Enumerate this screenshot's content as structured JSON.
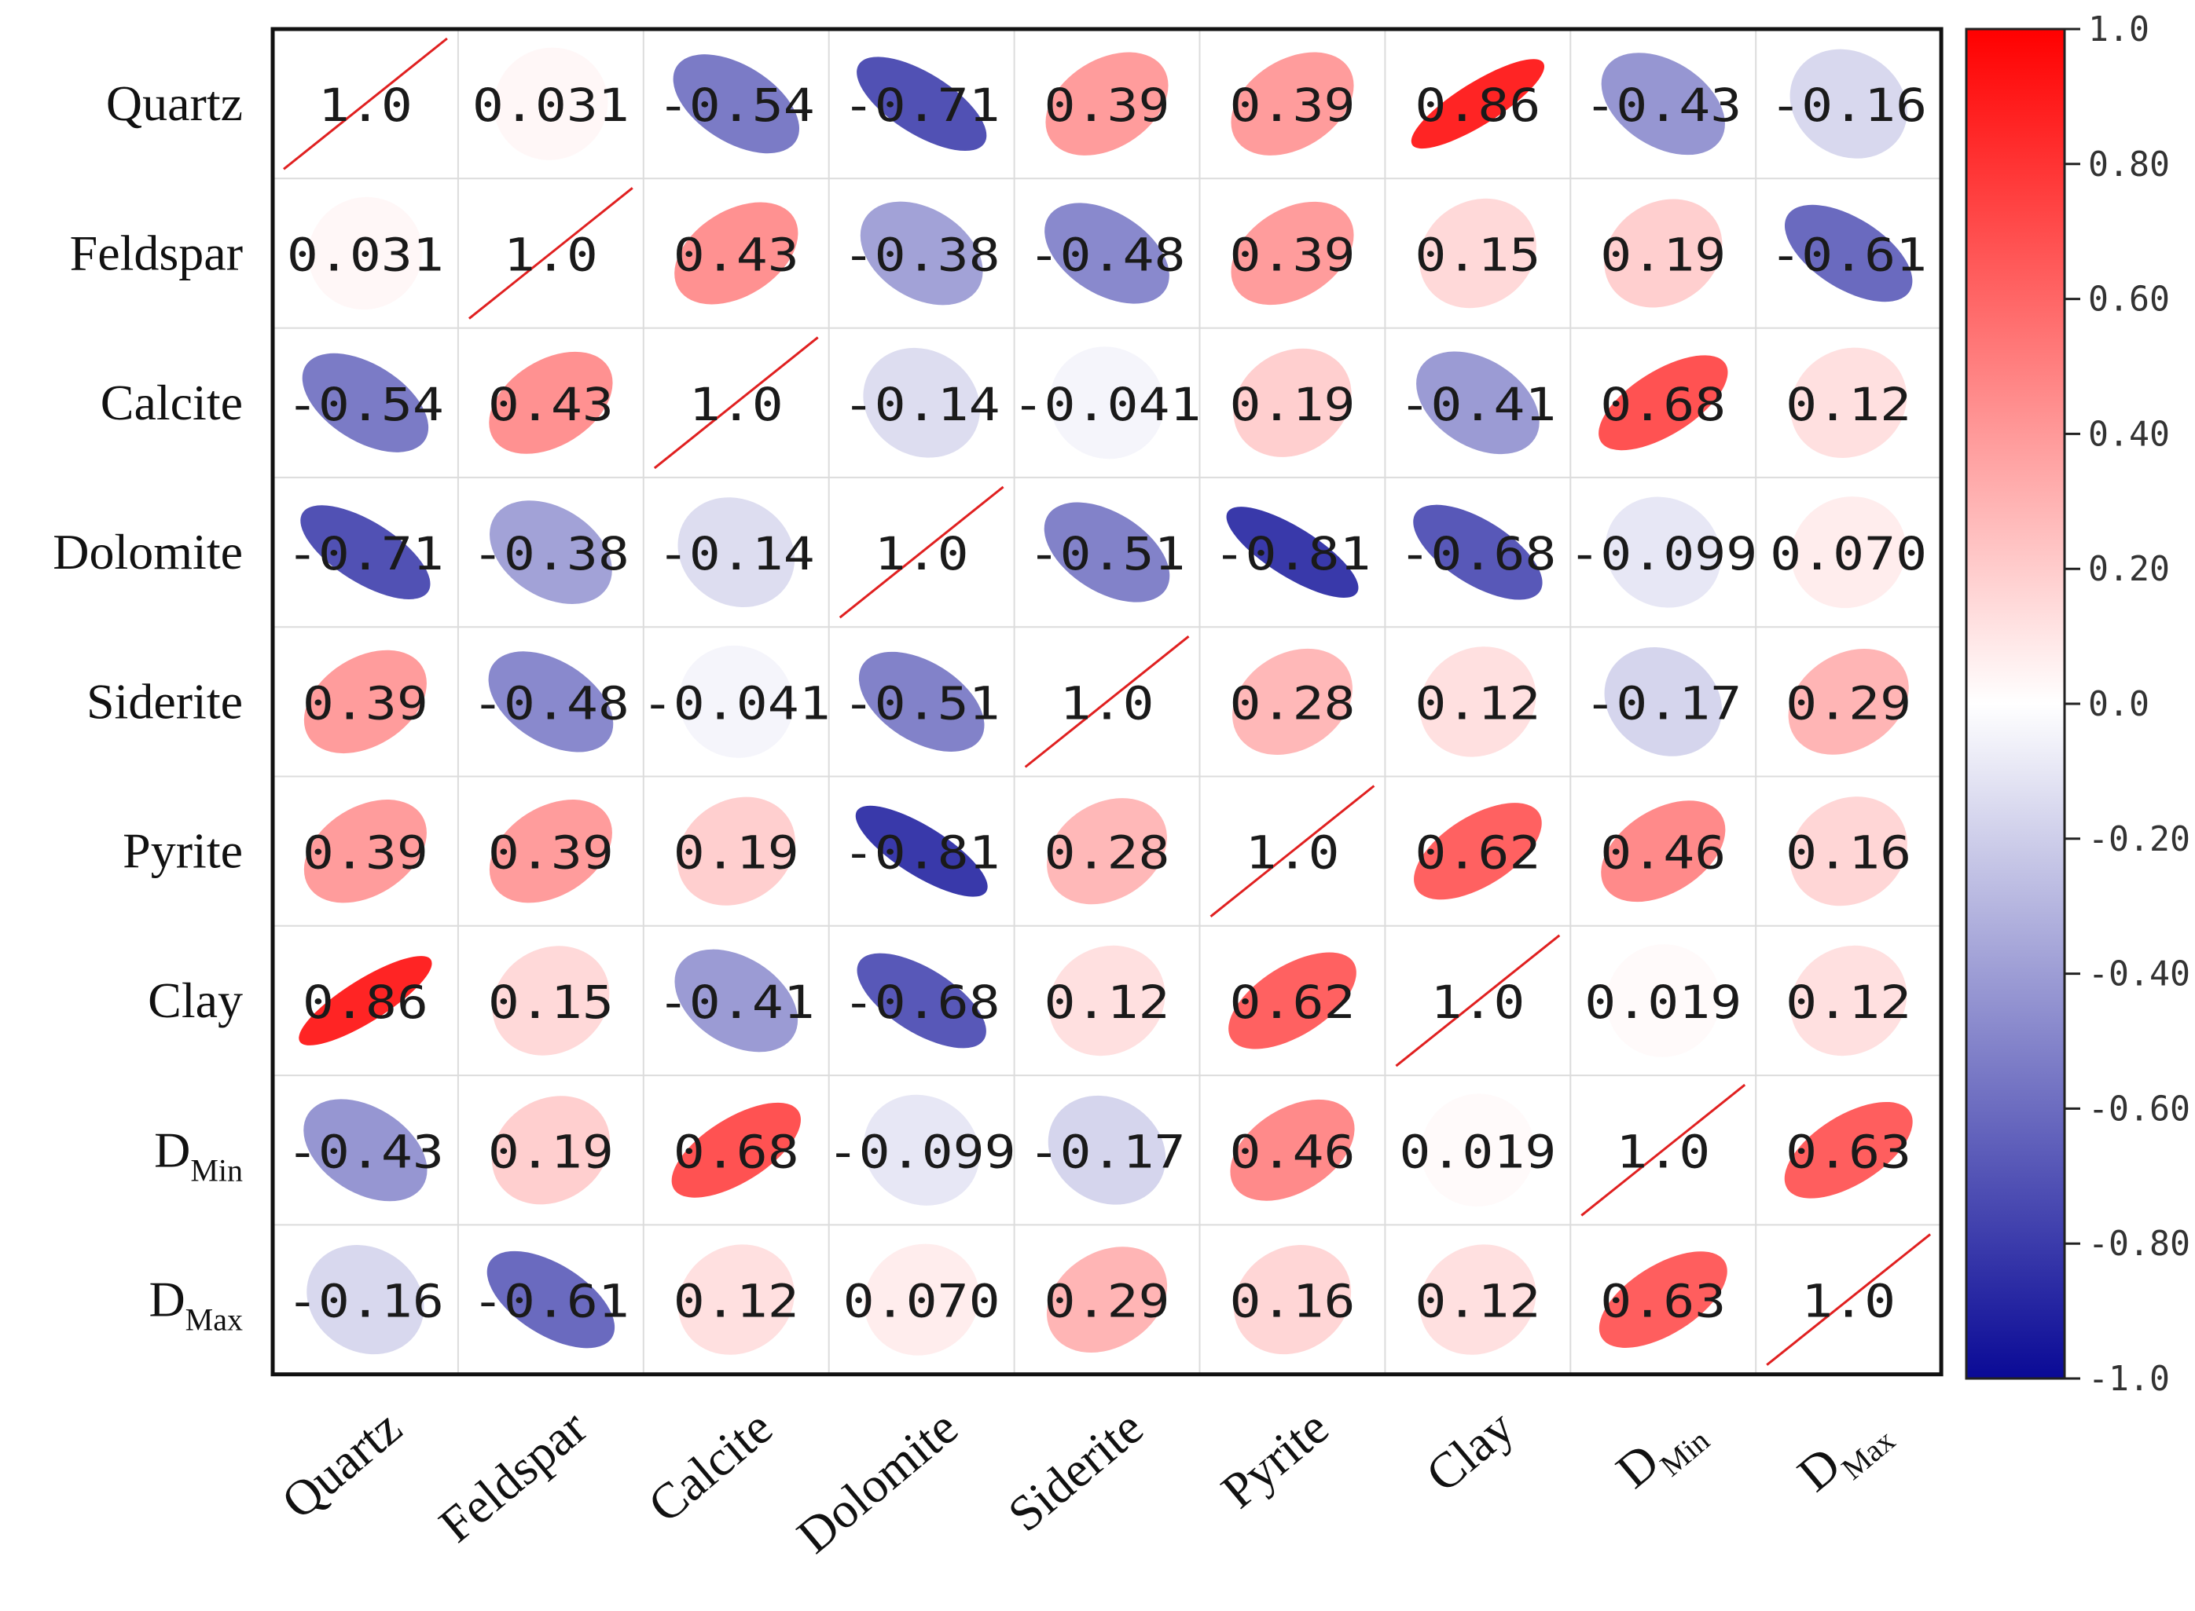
{
  "chart_data": {
    "type": "heatmap",
    "subtype": "correlation-ellipse-matrix",
    "variables": [
      {
        "name": "Quartz"
      },
      {
        "name": "Feldspar"
      },
      {
        "name": "Calcite"
      },
      {
        "name": "Dolomite"
      },
      {
        "name": "Siderite"
      },
      {
        "name": "Pyrite"
      },
      {
        "name": "Clay"
      },
      {
        "name": "D",
        "sub": "Min"
      },
      {
        "name": "D",
        "sub": "Max"
      }
    ],
    "matrix": [
      [
        1.0,
        0.031,
        -0.54,
        -0.71,
        0.39,
        0.39,
        0.86,
        -0.43,
        -0.16
      ],
      [
        0.031,
        1.0,
        0.43,
        -0.38,
        -0.48,
        0.39,
        0.15,
        0.19,
        -0.61
      ],
      [
        -0.54,
        0.43,
        1.0,
        -0.14,
        -0.041,
        0.19,
        -0.41,
        0.68,
        0.12
      ],
      [
        -0.71,
        -0.38,
        -0.14,
        1.0,
        -0.51,
        -0.81,
        -0.68,
        -0.099,
        0.07
      ],
      [
        0.39,
        -0.48,
        -0.041,
        -0.51,
        1.0,
        0.28,
        0.12,
        -0.17,
        0.29
      ],
      [
        0.39,
        0.39,
        0.19,
        -0.81,
        0.28,
        1.0,
        0.62,
        0.46,
        0.16
      ],
      [
        0.86,
        0.15,
        -0.41,
        -0.68,
        0.12,
        0.62,
        1.0,
        0.019,
        0.12
      ],
      [
        -0.43,
        0.19,
        0.68,
        -0.099,
        -0.17,
        0.46,
        0.019,
        1.0,
        0.63
      ],
      [
        -0.16,
        -0.61,
        0.12,
        0.07,
        0.29,
        0.16,
        0.12,
        0.63,
        1.0
      ]
    ],
    "labels": [
      [
        "1.0",
        "0.031",
        "-0.54",
        "-0.71",
        "0.39",
        "0.39",
        "0.86",
        "-0.43",
        "-0.16"
      ],
      [
        "0.031",
        "1.0",
        "0.43",
        "-0.38",
        "-0.48",
        "0.39",
        "0.15",
        "0.19",
        "-0.61"
      ],
      [
        "-0.54",
        "0.43",
        "1.0",
        "-0.14",
        "-0.041",
        "0.19",
        "-0.41",
        "0.68",
        "0.12"
      ],
      [
        "-0.71",
        "-0.38",
        "-0.14",
        "1.0",
        "-0.51",
        "-0.81",
        "-0.68",
        "-0.099",
        "0.070"
      ],
      [
        "0.39",
        "-0.48",
        "-0.041",
        "-0.51",
        "1.0",
        "0.28",
        "0.12",
        "-0.17",
        "0.29"
      ],
      [
        "0.39",
        "0.39",
        "0.19",
        "-0.81",
        "0.28",
        "1.0",
        "0.62",
        "0.46",
        "0.16"
      ],
      [
        "0.86",
        "0.15",
        "-0.41",
        "-0.68",
        "0.12",
        "0.62",
        "1.0",
        "0.019",
        "0.12"
      ],
      [
        "-0.43",
        "0.19",
        "0.68",
        "-0.099",
        "-0.17",
        "0.46",
        "0.019",
        "1.0",
        "0.63"
      ],
      [
        "-0.16",
        "-0.61",
        "0.12",
        "0.070",
        "0.29",
        "0.16",
        "0.12",
        "0.63",
        "1.0"
      ]
    ],
    "colorbar": {
      "range": [
        -1.0,
        1.0
      ],
      "ticks": [
        1.0,
        0.8,
        0.6,
        0.4,
        0.2,
        0.0,
        -0.2,
        -0.4,
        -0.6,
        -0.8,
        -1.0
      ],
      "tick_labels": [
        "1.0",
        "0.80",
        "0.60",
        "0.40",
        "0.20",
        "0.0",
        "-0.20",
        "-0.40",
        "-0.60",
        "-0.80",
        "-1.0"
      ],
      "colors": {
        "negative": "#0a0a96",
        "zero": "#ffffff",
        "positive": "#ff0000"
      }
    },
    "diagonal_line_color": "#e02020",
    "grid": true,
    "legend": "right"
  }
}
